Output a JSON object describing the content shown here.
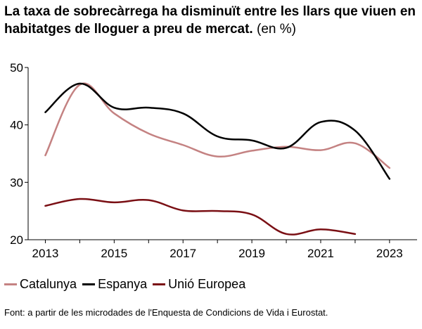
{
  "title": {
    "bold": "La taxa de sobrecàrrega ha disminuït entre les llars que viuen en habitatges de lloguer a preu de mercat.",
    "unit": "(en %)"
  },
  "source": "Font: a partir de les microdades de l'Enquesta de Condicions de Vida i Eurostat.",
  "colors": {
    "catalunya": "#c48282",
    "espanya": "#000000",
    "ue": "#7a0f14",
    "axis": "#000000"
  },
  "chart_data": {
    "type": "line",
    "title": "La taxa de sobrecàrrega ha disminuït entre les llars que viuen en habitatges de lloguer a preu de mercat. (en %)",
    "xlabel": "",
    "ylabel": "",
    "xlim": [
      2012.5,
      2023.8
    ],
    "ylim": [
      20,
      50
    ],
    "x_ticks": [
      2013,
      2015,
      2017,
      2019,
      2021,
      2023
    ],
    "y_ticks": [
      20,
      30,
      40,
      50
    ],
    "grid": false,
    "legend_position": "bottom",
    "series": [
      {
        "name": "Catalunya",
        "color": "#c48282",
        "x": [
          2013,
          2014,
          2015,
          2016,
          2017,
          2018,
          2019,
          2020,
          2021,
          2022,
          2023
        ],
        "y": [
          34.7,
          47.0,
          42.0,
          38.5,
          36.5,
          34.5,
          35.5,
          36.2,
          35.6,
          36.8,
          32.5
        ]
      },
      {
        "name": "Espanya",
        "color": "#000000",
        "x": [
          2013,
          2014,
          2015,
          2016,
          2017,
          2018,
          2019,
          2020,
          2021,
          2022,
          2023
        ],
        "y": [
          42.2,
          47.2,
          43.0,
          43.0,
          42.0,
          38.0,
          37.3,
          36.0,
          40.5,
          39.0,
          30.6
        ]
      },
      {
        "name": "Unió Europea",
        "color": "#7a0f14",
        "x": [
          2013,
          2014,
          2015,
          2016,
          2017,
          2018,
          2019,
          2020,
          2021,
          2022
        ],
        "y": [
          25.9,
          27.1,
          26.5,
          26.9,
          25.1,
          25.0,
          24.4,
          21.0,
          21.8,
          21.0
        ]
      }
    ]
  }
}
